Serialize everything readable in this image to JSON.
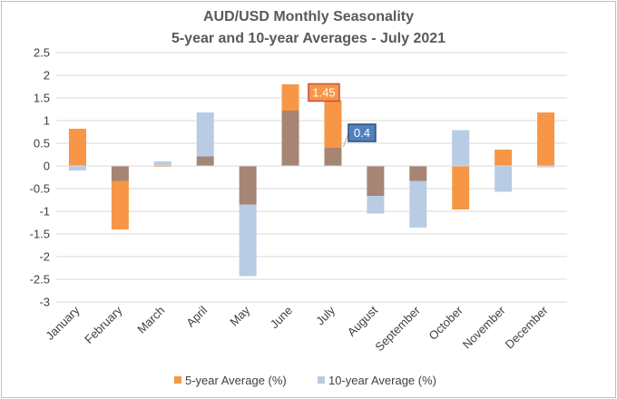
{
  "chart_data": {
    "type": "bar",
    "title": "AUD/USD Monthly  Seasonality",
    "subtitle": "5-year  and  10-year Averages  - July  2021",
    "categories": [
      "January",
      "February",
      "March",
      "April",
      "May",
      "June",
      "July",
      "August",
      "September",
      "October",
      "November",
      "December"
    ],
    "series": [
      {
        "name": "5-year Average (%)",
        "color": "#f79646",
        "values": [
          0.82,
          -1.4,
          -0.02,
          0.21,
          -0.85,
          1.8,
          1.45,
          -0.66,
          -0.33,
          -0.96,
          0.36,
          1.18
        ]
      },
      {
        "name": "10-year Average (%)",
        "color": "#b8cce4",
        "values": [
          -0.1,
          -0.33,
          0.1,
          1.18,
          -2.43,
          1.22,
          0.4,
          -1.05,
          -1.36,
          0.79,
          -0.57,
          -0.03
        ]
      }
    ],
    "overlap_color": "#a68574",
    "ylim": [
      -3,
      2.5
    ],
    "yticks": [
      "2.5",
      "2",
      "1.5",
      "1",
      "0.5",
      "0",
      "-0.5",
      "-1",
      "-1.5",
      "-2",
      "-2.5",
      "-3"
    ],
    "gridlines": true,
    "legend_position": "bottom",
    "annotations": [
      {
        "text": "1.45",
        "category": "July",
        "series": "5-year Average (%)",
        "bg": "#f79646",
        "border": "#c0504d"
      },
      {
        "text": "0.4",
        "category": "July",
        "series": "10-year Average (%)",
        "bg": "#4f81bd",
        "border": "#2c4d75"
      }
    ]
  }
}
